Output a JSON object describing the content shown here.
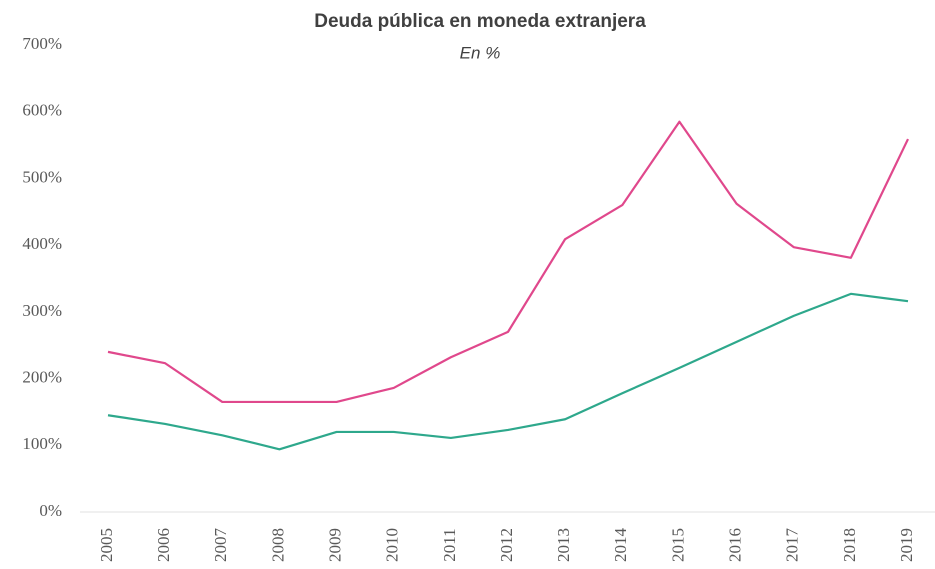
{
  "chart_data": {
    "type": "line",
    "title": "Deuda pública en moneda extranjera",
    "subtitle": "En %",
    "categories": [
      "2005",
      "2006",
      "2007",
      "2008",
      "2009",
      "2010",
      "2011",
      "2012",
      "2013",
      "2014",
      "2015",
      "2016",
      "2017",
      "2018",
      "2019"
    ],
    "series": [
      {
        "color": "#e0488c",
        "values": [
          240,
          223,
          165,
          165,
          165,
          186,
          232,
          270,
          409,
          460,
          585,
          462,
          397,
          381,
          559
        ]
      },
      {
        "color": "#2ea88c",
        "values": [
          145,
          132,
          115,
          94,
          120,
          120,
          111,
          123,
          139,
          178,
          216,
          255,
          294,
          327,
          316
        ]
      }
    ],
    "ylim": [
      0,
      700
    ],
    "yticks": [
      {
        "value": 0,
        "label": "0%"
      },
      {
        "value": 100,
        "label": "100%"
      },
      {
        "value": 200,
        "label": "200%"
      },
      {
        "value": 300,
        "label": "300%"
      },
      {
        "value": 400,
        "label": "400%"
      },
      {
        "value": 500,
        "label": "500%"
      },
      {
        "value": 600,
        "label": "600%"
      },
      {
        "value": 700,
        "label": "700%"
      }
    ],
    "grid": false
  }
}
